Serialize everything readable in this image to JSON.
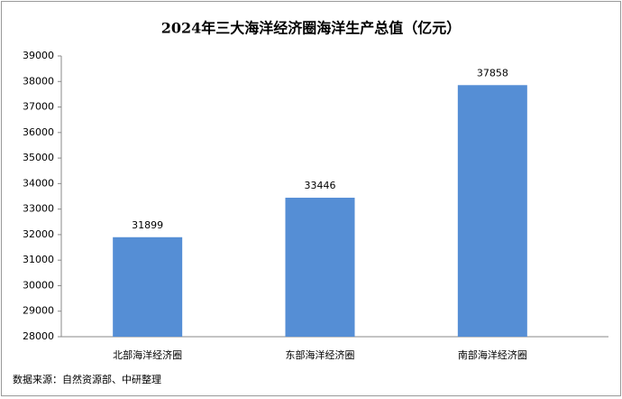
{
  "chart_data": {
    "type": "bar",
    "title": "2024年三大海洋经济圈海洋生产总值（亿元）",
    "categories": [
      "北部海洋经济圈",
      "东部海洋经济圈",
      "南部海洋经济圈"
    ],
    "values": [
      31899,
      33446,
      37858
    ],
    "color": "#558ed5",
    "ylim": [
      28000,
      39000
    ],
    "yticks": [
      28000,
      29000,
      30000,
      31000,
      32000,
      33000,
      34000,
      35000,
      36000,
      37000,
      38000,
      39000
    ],
    "grid": false,
    "source": "数据来源：自然资源部、中研整理"
  }
}
